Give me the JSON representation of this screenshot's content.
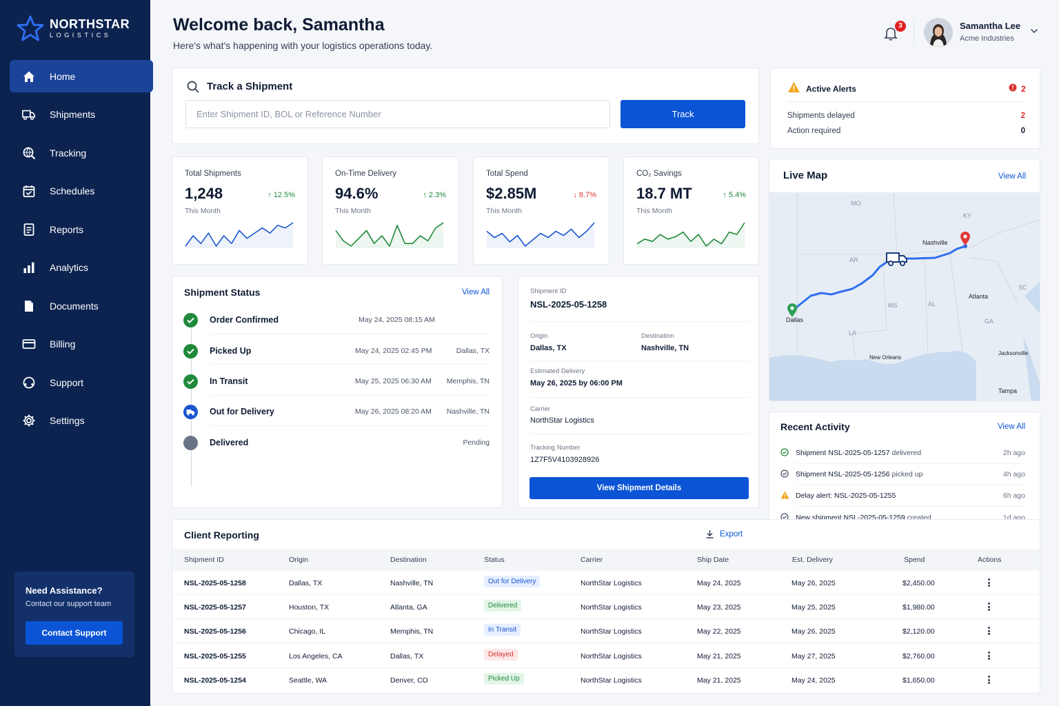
{
  "brand": {
    "name": "NORTHSTAR",
    "sub": "LOGISTICS"
  },
  "nav": [
    {
      "label": "Home",
      "icon": "home-icon",
      "active": true
    },
    {
      "label": "Shipments",
      "icon": "truck-icon"
    },
    {
      "label": "Tracking",
      "icon": "globe-search-icon"
    },
    {
      "label": "Schedules",
      "icon": "calendar-icon"
    },
    {
      "label": "Reports",
      "icon": "report-icon"
    },
    {
      "label": "Analytics",
      "icon": "bar-chart-icon"
    },
    {
      "label": "Documents",
      "icon": "document-icon"
    },
    {
      "label": "Billing",
      "icon": "credit-card-icon"
    },
    {
      "label": "Support",
      "icon": "headset-icon"
    },
    {
      "label": "Settings",
      "icon": "gear-icon"
    }
  ],
  "assist": {
    "title": "Need Assistance?",
    "subtitle": "Contact our support team",
    "button": "Contact Support"
  },
  "header": {
    "welcome": "Welcome back, Samantha",
    "subtitle": "Here's what's happening with your logistics operations today.",
    "notifications": "3",
    "user_name": "Samantha Lee",
    "user_org": "Acme Industries"
  },
  "track": {
    "title": "Track a Shipment",
    "placeholder": "Enter Shipment ID, BOL or Reference Number",
    "button": "Track"
  },
  "alerts": {
    "title": "Active Alerts",
    "count": "2",
    "rows": [
      {
        "label": "Shipments delayed",
        "value": "2",
        "color": "#d93030"
      },
      {
        "label": "Action required",
        "value": "0",
        "color": "#0f1b33"
      }
    ]
  },
  "kpis": [
    {
      "label": "Total Shipments",
      "value": "1,248",
      "delta": "12.5%",
      "direction": "up",
      "sub": "This Month",
      "color": "#1a56d0",
      "trend": [
        3,
        7,
        4,
        8,
        3,
        7,
        4,
        9,
        6,
        8,
        10,
        8,
        11,
        10,
        12
      ]
    },
    {
      "label": "On-Time Delivery",
      "value": "94.6%",
      "delta": "2.3%",
      "direction": "up",
      "sub": "This Month",
      "color": "#1f8a3b",
      "trend": [
        9,
        5,
        3,
        6,
        9,
        4,
        7,
        3,
        11,
        4,
        4,
        7,
        5,
        10,
        12
      ]
    },
    {
      "label": "Total Spend",
      "value": "$2.85M",
      "delta": "8.7%",
      "direction": "down",
      "sub": "This Month",
      "color": "#1a56d0",
      "trend": [
        8,
        5,
        7,
        3,
        6,
        1,
        4,
        7,
        5,
        8,
        6,
        9,
        5,
        8,
        12
      ]
    },
    {
      "label": "CO₂ Savings",
      "value": "18.7 MT",
      "delta": "5.4%",
      "direction": "up",
      "sub": "This Month",
      "color": "#1f8a3b",
      "trend": [
        3,
        5,
        4,
        7,
        5,
        6,
        8,
        4,
        7,
        2,
        5,
        3,
        8,
        7,
        12
      ]
    }
  ],
  "status": {
    "title": "Shipment Status",
    "view_all": "View All",
    "steps": [
      {
        "name": "Order Confirmed",
        "date": "May 24, 2025 08:15 AM",
        "loc": "",
        "state": "done"
      },
      {
        "name": "Picked Up",
        "date": "May 24, 2025 02:45 PM",
        "loc": "Dallas, TX",
        "state": "done"
      },
      {
        "name": "In Transit",
        "date": "May 25, 2025 06:30 AM",
        "loc": "Memphis, TN",
        "state": "done"
      },
      {
        "name": "Out for Delivery",
        "date": "May 26, 2025 08:20 AM",
        "loc": "Nashville, TN",
        "state": "current"
      },
      {
        "name": "Delivered",
        "date": "",
        "loc": "Pending",
        "state": "pending"
      }
    ]
  },
  "details": {
    "id_label": "Shipment ID",
    "id": "NSL-2025-05-1258",
    "origin_label": "Origin",
    "origin": "Dallas, TX",
    "dest_label": "Destination",
    "dest": "Nashville, TN",
    "eta_label": "Estimated Delivery",
    "eta": "May 26, 2025 by 06:00 PM",
    "carrier_label": "Carrier",
    "carrier": "NorthStar Logistics",
    "tracking_label": "Tracking Number",
    "tracking": "1Z7F5V4103928926",
    "button": "View Shipment Details"
  },
  "map": {
    "title": "Live Map",
    "view_all": "View All",
    "states": [
      "MO",
      "KY",
      "AR",
      "SC",
      "MS",
      "AL",
      "GA",
      "LA"
    ],
    "cities": [
      "Nashville",
      "Atlanta",
      "Dallas",
      "New Orleans",
      "Jacksonville",
      "Tampa"
    ]
  },
  "activity": {
    "title": "Recent Activity",
    "view_all": "View All",
    "items": [
      {
        "main": "Shipment NSL-2025-05-1257",
        "suffix": " delivered",
        "time": "2h ago",
        "icon": "check-circle-icon"
      },
      {
        "main": "Shipment NSL-2025-05-1256",
        "suffix": " picked up",
        "time": "4h ago",
        "icon": "check-circle-icon"
      },
      {
        "main": "Delay alert: NSL-2025-05-1255",
        "suffix": "",
        "time": "6h ago",
        "icon": "warning-icon"
      },
      {
        "main": "New shipment NSL-2025-05-1259",
        "suffix": " created",
        "time": "1d ago",
        "icon": "check-circle-icon"
      }
    ]
  },
  "report": {
    "title": "Client Reporting",
    "export": "Export",
    "columns": [
      "Shipment ID",
      "Origin",
      "Destination",
      "Status",
      "Carrier",
      "Ship Date",
      "Est. Delivery",
      "Spend",
      "Actions"
    ],
    "rows": [
      {
        "id": "NSL-2025-05-1258",
        "origin": "Dallas, TX",
        "dest": "Nashville, TN",
        "status": "Out for Delivery",
        "tone": "blue",
        "carrier": "NorthStar Logistics",
        "ship": "May 24, 2025",
        "eta": "May 26, 2025",
        "spend": "$2,450.00"
      },
      {
        "id": "NSL-2025-05-1257",
        "origin": "Houston, TX",
        "dest": "Atlanta, GA",
        "status": "Delivered",
        "tone": "green",
        "carrier": "NorthStar Logistics",
        "ship": "May 23, 2025",
        "eta": "May 25, 2025",
        "spend": "$1,980.00"
      },
      {
        "id": "NSL-2025-05-1256",
        "origin": "Chicago, IL",
        "dest": "Memphis, TN",
        "status": "In Transit",
        "tone": "blue",
        "carrier": "NorthStar Logistics",
        "ship": "May 22, 2025",
        "eta": "May 26, 2025",
        "spend": "$2,120.00"
      },
      {
        "id": "NSL-2025-05-1255",
        "origin": "Los Angeles, CA",
        "dest": "Dallas, TX",
        "status": "Delayed",
        "tone": "red",
        "carrier": "NorthStar Logistics",
        "ship": "May 21, 2025",
        "eta": "May 27, 2025",
        "spend": "$2,760.00"
      },
      {
        "id": "NSL-2025-05-1254",
        "origin": "Seattle, WA",
        "dest": "Denver, CO",
        "status": "Picked Up",
        "tone": "green",
        "carrier": "NorthStar Logistics",
        "ship": "May 21, 2025",
        "eta": "May 24, 2025",
        "spend": "$1,650.00"
      }
    ]
  },
  "colors": {
    "sidebar": "#0c2350",
    "accent": "#0b54d6",
    "success": "#1f8a3b",
    "danger": "#d93030"
  }
}
